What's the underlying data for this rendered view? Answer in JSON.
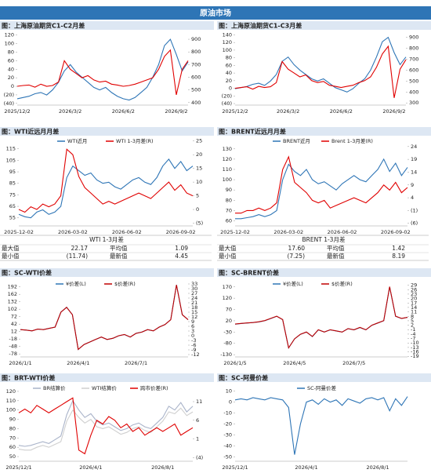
{
  "header": {
    "title": "原油市场"
  },
  "tables": [
    {
      "title": "WTI 1-3月差",
      "rows": [
        [
          "最大值",
          "22.17",
          "平均值",
          "1.09"
        ],
        [
          "最小值",
          "(11.74)",
          "最新值",
          "4.45"
        ]
      ]
    },
    {
      "title": "BRENT 1-3月差",
      "rows": [
        [
          "最大值",
          "17.60",
          "平均值",
          "1.42"
        ],
        [
          "最小值",
          "(7.25)",
          "最新值",
          "8.19"
        ]
      ]
    }
  ],
  "chart_data": [
    {
      "type": "line",
      "title": "图：上海原油期货C1-C2月差",
      "categories": [
        "2025/12/2",
        null,
        null,
        null,
        null,
        null,
        null,
        null,
        null,
        "2026/3/2",
        null,
        null,
        null,
        null,
        null,
        null,
        null,
        null,
        "2026/6/2",
        null,
        null,
        null,
        null,
        null,
        null,
        null,
        null,
        "2026/9/2",
        null,
        null
      ],
      "series": [
        {
          "color": "#2e75b6",
          "axis": "y2",
          "values": [
            430,
            440,
            450,
            470,
            480,
            460,
            500,
            560,
            650,
            700,
            640,
            600,
            560,
            520,
            500,
            520,
            480,
            450,
            430,
            420,
            440,
            480,
            520,
            600,
            700,
            850,
            900,
            780,
            650,
            720
          ]
        },
        {
          "color": "#e00000",
          "values": [
            0,
            2,
            3,
            -2,
            5,
            0,
            2,
            10,
            60,
            40,
            30,
            20,
            25,
            15,
            10,
            12,
            5,
            3,
            0,
            2,
            5,
            10,
            15,
            20,
            40,
            70,
            85,
            -20,
            40,
            60
          ]
        }
      ],
      "ylim": [
        -44,
        125
      ],
      "yticks": [
        {
          "value": -40,
          "label": "(40)"
        },
        {
          "value": -20,
          "label": "(20)"
        },
        0,
        20,
        40,
        60,
        80,
        100,
        120
      ],
      "y2lim": [
        380,
        950
      ],
      "y2ticks": [
        400,
        500,
        600,
        700,
        800,
        900
      ]
    },
    {
      "type": "line",
      "title": "图：上海原油期货C1-C3月差",
      "categories": [
        "2025/12/2",
        null,
        null,
        null,
        null,
        null,
        null,
        null,
        null,
        "2026/3/2",
        null,
        null,
        null,
        null,
        null,
        null,
        null,
        null,
        "2026/6/2",
        null,
        null,
        null,
        null,
        null,
        null,
        null,
        null,
        "2026/9/2",
        null,
        null
      ],
      "series": [
        {
          "color": "#2e75b6",
          "axis": "y2",
          "values": [
            430,
            440,
            450,
            470,
            480,
            460,
            500,
            560,
            680,
            720,
            650,
            600,
            560,
            520,
            500,
            520,
            480,
            440,
            420,
            400,
            430,
            480,
            520,
            600,
            720,
            860,
            900,
            760,
            650,
            720
          ]
        },
        {
          "color": "#e00000",
          "values": [
            0,
            2,
            4,
            -2,
            5,
            2,
            4,
            15,
            70,
            50,
            40,
            30,
            35,
            20,
            15,
            18,
            8,
            5,
            2,
            5,
            8,
            15,
            20,
            30,
            55,
            90,
            110,
            -25,
            50,
            75
          ]
        }
      ],
      "ylim": [
        -44,
        145
      ],
      "yticks": [
        {
          "value": -40,
          "label": "(40)"
        },
        {
          "value": -20,
          "label": "(20)"
        },
        0,
        20,
        40,
        60,
        80,
        100,
        120,
        140
      ],
      "y2lim": [
        280,
        940
      ],
      "y2ticks": [
        300,
        400,
        500,
        600,
        700,
        800,
        900
      ]
    },
    {
      "type": "line",
      "title": "图：WTI近远月月差",
      "legend": "top",
      "categories": [
        "2025-12-02",
        null,
        null,
        null,
        null,
        null,
        null,
        null,
        null,
        "2026-03-02",
        null,
        null,
        null,
        null,
        null,
        null,
        null,
        null,
        "2026-06-02",
        null,
        null,
        null,
        null,
        null,
        null,
        null,
        null,
        "2026-09-02",
        null,
        null
      ],
      "series": [
        {
          "name": "WTI近月",
          "color": "#2e75b6",
          "values": [
            58,
            56,
            55,
            60,
            62,
            58,
            60,
            65,
            90,
            100,
            96,
            92,
            94,
            88,
            85,
            86,
            82,
            80,
            84,
            88,
            90,
            86,
            84,
            90,
            100,
            106,
            98,
            104,
            96,
            100
          ]
        },
        {
          "name": "WTI 1-3月差(R)",
          "color": "#e00000",
          "axis": "y2",
          "values": [
            0,
            -1,
            1,
            0,
            2,
            1,
            2,
            5,
            22,
            20,
            12,
            8,
            6,
            4,
            2,
            3,
            2,
            3,
            4,
            5,
            6,
            5,
            4,
            6,
            8,
            10,
            7,
            9,
            6,
            5
          ]
        }
      ],
      "ylim": [
        48,
        123
      ],
      "yticks": [
        55,
        65,
        75,
        85,
        95,
        105,
        115
      ],
      "y2lim": [
        -6,
        25.5
      ],
      "y2ticks": [
        {
          "value": -5,
          "label": "(5)"
        },
        0,
        5,
        10,
        15,
        20,
        25
      ]
    },
    {
      "type": "line",
      "title": "图：BRENT近远月月差",
      "legend": "top",
      "categories": [
        "2025-12-02",
        null,
        null,
        null,
        null,
        null,
        null,
        null,
        null,
        "2026-03-02",
        null,
        null,
        null,
        null,
        null,
        null,
        null,
        null,
        "2026-06-02",
        null,
        null,
        null,
        null,
        null,
        null,
        null,
        null,
        "2026-09-02",
        null,
        null
      ],
      "series": [
        {
          "name": "BRENT近月",
          "color": "#2e75b6",
          "values": [
            62,
            62,
            63,
            64,
            66,
            64,
            66,
            70,
            100,
            115,
            108,
            104,
            110,
            100,
            96,
            98,
            94,
            90,
            96,
            100,
            104,
            100,
            98,
            104,
            110,
            120,
            108,
            116,
            104,
            112
          ]
        },
        {
          "name": "Brent 1-3月差(R)",
          "color": "#e00000",
          "axis": "y2",
          "values": [
            -2,
            -2,
            -1,
            -1,
            0,
            -1,
            0,
            2,
            15,
            20,
            10,
            8,
            6,
            3,
            2,
            3,
            0,
            1,
            2,
            3,
            4,
            3,
            2,
            4,
            6,
            9,
            7,
            10,
            6,
            8
          ]
        }
      ],
      "ylim": [
        55,
        139
      ],
      "yticks": [
        60,
        70,
        80,
        90,
        100,
        110,
        120,
        130
      ],
      "y2lim": [
        -7,
        26.7
      ],
      "y2ticks": [
        {
          "value": -6,
          "label": "(6)"
        },
        {
          "value": -1,
          "label": "(1)"
        },
        4,
        9,
        14,
        19,
        24
      ]
    },
    {
      "type": "line",
      "title": "图：SC-WTI价差",
      "legend": "top",
      "categories": [
        "2026/1/1",
        null,
        null,
        null,
        null,
        null,
        null,
        null,
        null,
        null,
        "2026/4/1",
        null,
        null,
        null,
        null,
        null,
        null,
        null,
        null,
        null,
        "2026/7/1",
        null,
        null,
        null,
        null,
        null,
        null,
        null,
        null,
        null
      ],
      "series": [
        {
          "name": "¥价差(L)",
          "color": "#2e75b6",
          "values": [
            20,
            18,
            15,
            22,
            20,
            25,
            30,
            90,
            110,
            80,
            -60,
            -40,
            -30,
            -20,
            -10,
            -20,
            -15,
            -5,
            0,
            -10,
            5,
            10,
            20,
            15,
            30,
            40,
            60,
            200,
            80,
            60
          ]
        },
        {
          "name": "$价差(R)",
          "color": "#c00000",
          "axis": "y2",
          "values": [
            3.9,
            3.6,
            3.1,
            4.2,
            3.9,
            4.7,
            5.5,
            15,
            18.1,
            13.4,
            -8.7,
            -5.6,
            -4,
            -2.4,
            -0.8,
            -2.4,
            -1.6,
            0,
            0.8,
            -0.8,
            1.5,
            2.3,
            3.9,
            3.1,
            5.5,
            7.1,
            10.2,
            32.4,
            13.4,
            10.2
          ]
        }
      ],
      "ylim": [
        -90,
        210
      ],
      "yticks": [
        -78,
        -48,
        -18,
        12,
        42,
        72,
        102,
        132,
        162,
        192
      ],
      "y2lim": [
        -13.5,
        34
      ],
      "y2ticks": [
        -12,
        -9,
        -6,
        -3,
        0,
        3,
        6,
        9,
        12,
        15,
        18,
        21,
        24,
        27,
        30,
        33
      ]
    },
    {
      "type": "line",
      "title": "图：SC-BRENT价差",
      "legend": "top",
      "categories": [
        "2026/1/5",
        null,
        null,
        null,
        null,
        null,
        null,
        null,
        null,
        null,
        "2026/4/5",
        null,
        null,
        null,
        null,
        null,
        null,
        null,
        null,
        null,
        "2026/7/5",
        null,
        null,
        null,
        null,
        null,
        null,
        null,
        null,
        null
      ],
      "series": [
        {
          "name": "¥价差(L)",
          "color": "#2e75b6",
          "values": [
            5,
            8,
            10,
            12,
            15,
            20,
            30,
            40,
            25,
            -100,
            -60,
            -40,
            -30,
            -50,
            -20,
            -30,
            -20,
            -25,
            -30,
            -15,
            -20,
            -10,
            -20,
            0,
            10,
            20,
            170,
            40,
            30,
            35
          ]
        },
        {
          "name": "$价差(R)",
          "color": "#c00000",
          "axis": "y2",
          "values": [
            2.8,
            3.2,
            3.5,
            3.8,
            4.3,
            5.1,
            6.6,
            8.1,
            5.8,
            -13.3,
            -7.2,
            -4.1,
            -2.6,
            -5.6,
            -1.1,
            -2.6,
            -1.1,
            -1.8,
            -2.6,
            -0.3,
            -1.1,
            0.5,
            -1.1,
            2,
            3.5,
            5.1,
            28,
            8.1,
            6.6,
            7.3
          ]
        }
      ],
      "ylim": [
        -140,
        190
      ],
      "yticks": [
        -130,
        -80,
        -30,
        20,
        70,
        120,
        170
      ],
      "y2lim": [
        -19.4,
        30.9
      ],
      "y2ticks": [
        -19,
        -16,
        -13,
        -10,
        -7,
        -4,
        -1,
        2,
        5,
        8,
        11,
        14,
        17,
        20,
        23,
        26,
        29
      ]
    },
    {
      "type": "line",
      "title": "图：BRT-WTI价差",
      "legend": "top",
      "categories": [
        "2025/12/1",
        null,
        null,
        null,
        null,
        null,
        null,
        null,
        null,
        null,
        null,
        null,
        "2026/4/1",
        null,
        null,
        null,
        null,
        null,
        null,
        null,
        null,
        null,
        null,
        null,
        "2026/8/1",
        null,
        null,
        null,
        null,
        null
      ],
      "series": [
        {
          "name": "BR结算价",
          "color": "#a9b3c9",
          "values": [
            62,
            61,
            62,
            64,
            66,
            64,
            68,
            72,
            95,
            110,
            100,
            92,
            96,
            88,
            84,
            86,
            82,
            78,
            80,
            84,
            86,
            82,
            80,
            86,
            92,
            104,
            100,
            108,
            98,
            104
          ]
        },
        {
          "name": "WTI结算价",
          "color": "#cfcfcf",
          "values": [
            58,
            57,
            57,
            60,
            62,
            60,
            63,
            66,
            88,
            100,
            92,
            86,
            90,
            82,
            80,
            82,
            78,
            74,
            76,
            80,
            82,
            78,
            76,
            82,
            88,
            98,
            96,
            102,
            94,
            98
          ]
        },
        {
          "name": "跨市价差(R)",
          "color": "#e00000",
          "axis": "y2",
          "values": [
            8,
            9,
            8,
            10,
            9,
            8,
            9,
            10,
            11,
            12,
            -2,
            -3,
            2,
            6,
            5,
            7,
            6,
            4,
            5,
            3,
            4,
            2,
            3,
            4,
            3,
            4,
            5,
            2,
            3,
            4
          ]
        }
      ],
      "ylim": [
        45,
        125
      ],
      "yticks": [
        50,
        60,
        70,
        80,
        90,
        100,
        110,
        120
      ],
      "y2lim": [
        -5,
        15
      ],
      "y2ticks": [
        {
          "value": -4,
          "label": "(4)"
        },
        1,
        6,
        11
      ]
    },
    {
      "type": "line",
      "title": "图：SC-阿曼价差",
      "legend": "top",
      "categories": [
        "2025/12/1",
        null,
        null,
        null,
        null,
        null,
        null,
        null,
        null,
        null,
        null,
        null,
        "2026/4/1",
        null,
        null,
        null,
        null,
        null,
        null,
        null,
        null,
        null,
        null,
        null,
        "2026/8/1",
        null,
        null,
        null,
        null,
        null
      ],
      "series": [
        {
          "name": "SC-阿曼价差",
          "color": "#2e75b6",
          "values": [
            2,
            3,
            2,
            4,
            3,
            2,
            4,
            3,
            2,
            -5,
            -48,
            -20,
            0,
            2,
            -2,
            3,
            0,
            2,
            -3,
            3,
            1,
            -1,
            3,
            4,
            2,
            4,
            -8,
            3,
            -3,
            5
          ]
        }
      ],
      "ylim": [
        -54,
        14
      ],
      "yticks": [
        -50,
        -40,
        -30,
        -20,
        -10,
        0,
        10
      ]
    }
  ]
}
